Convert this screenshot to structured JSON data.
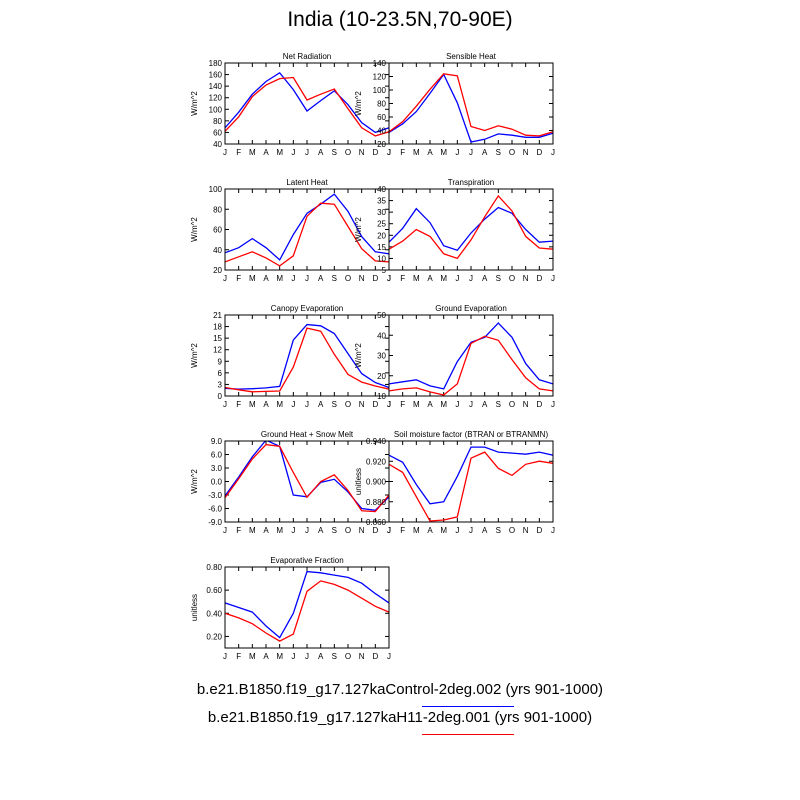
{
  "title": "India (10-23.5N,70-90E)",
  "colors": {
    "series1": "#0000ff",
    "series2": "#ff0000",
    "axis": "#000000"
  },
  "legend": [
    {
      "label": "b.e21.B1850.f19_g17.127kaControl-2deg.002 (yrs 901-1000)",
      "color": "#0000ff"
    },
    {
      "label": "b.e21.B1850.f19_g17.127kaH11-2deg.001 (yrs 901-1000)",
      "color": "#ff0000"
    }
  ],
  "chart_data": [
    {
      "type": "line",
      "title": "Net Radiation",
      "ylabel": "W/m^2",
      "categories": [
        "J",
        "F",
        "M",
        "A",
        "M",
        "J",
        "J",
        "A",
        "S",
        "O",
        "N",
        "D",
        "J"
      ],
      "ylim": [
        40,
        180
      ],
      "yticks": [
        40,
        60,
        80,
        100,
        120,
        140,
        160,
        180
      ],
      "ytick_labels": [
        "40",
        "60",
        "80",
        "100",
        "120",
        "140",
        "160",
        "180"
      ],
      "series": [
        {
          "values": [
            68,
            95,
            126,
            148,
            163,
            134,
            97,
            115,
            132,
            108,
            77,
            60,
            68
          ]
        },
        {
          "values": [
            62,
            87,
            122,
            142,
            153,
            155,
            116,
            126,
            135,
            101,
            68,
            54,
            61
          ]
        }
      ]
    },
    {
      "type": "line",
      "title": "Sensible Heat",
      "ylabel": "W/m^2",
      "categories": [
        "J",
        "F",
        "M",
        "A",
        "M",
        "J",
        "J",
        "A",
        "S",
        "O",
        "N",
        "D",
        "J"
      ],
      "ylim": [
        20,
        140
      ],
      "yticks": [
        20,
        40,
        60,
        80,
        100,
        120,
        140
      ],
      "ytick_labels": [
        "20",
        "40",
        "60",
        "80",
        "100",
        "120",
        "140"
      ],
      "series": [
        {
          "values": [
            37,
            50,
            68,
            95,
            123,
            81,
            23,
            27,
            35,
            33,
            30,
            30,
            36
          ]
        },
        {
          "values": [
            38,
            53,
            76,
            101,
            124,
            121,
            46,
            40,
            47,
            42,
            33,
            32,
            38
          ]
        }
      ]
    },
    {
      "type": "line",
      "title": "Latent Heat",
      "ylabel": "W/m^2",
      "categories": [
        "J",
        "F",
        "M",
        "A",
        "M",
        "J",
        "J",
        "A",
        "S",
        "O",
        "N",
        "D",
        "J"
      ],
      "ylim": [
        20,
        100
      ],
      "yticks": [
        20,
        40,
        60,
        80,
        100
      ],
      "ytick_labels": [
        "20",
        "40",
        "60",
        "80",
        "100"
      ],
      "series": [
        {
          "values": [
            37,
            42,
            51,
            42,
            30,
            55,
            76,
            85,
            95,
            78,
            53,
            38,
            36
          ]
        },
        {
          "values": [
            28,
            33,
            38,
            32,
            24,
            34,
            73,
            86,
            85,
            63,
            41,
            29,
            28
          ]
        }
      ]
    },
    {
      "type": "line",
      "title": "Transpiration",
      "ylabel": "W/m^2",
      "categories": [
        "J",
        "F",
        "M",
        "A",
        "M",
        "J",
        "J",
        "A",
        "S",
        "O",
        "N",
        "D",
        "J"
      ],
      "ylim": [
        5,
        40
      ],
      "yticks": [
        5,
        10,
        15,
        20,
        25,
        30,
        35,
        40
      ],
      "ytick_labels": [
        "5",
        "10",
        "15",
        "20",
        "25",
        "30",
        "35",
        "40"
      ],
      "series": [
        {
          "values": [
            17,
            23,
            31.5,
            25.5,
            15.5,
            13.5,
            21,
            27,
            32,
            29.5,
            22.5,
            17,
            17.5
          ]
        },
        {
          "values": [
            14,
            17.5,
            22.5,
            19.5,
            12,
            10,
            18,
            28,
            37,
            30.5,
            19.5,
            14.5,
            14
          ]
        }
      ]
    },
    {
      "type": "line",
      "title": "Canopy Evaporation",
      "ylabel": "W/m^2",
      "categories": [
        "J",
        "F",
        "M",
        "A",
        "M",
        "J",
        "J",
        "A",
        "S",
        "O",
        "N",
        "D",
        "J"
      ],
      "ylim": [
        0,
        21
      ],
      "yticks": [
        0,
        3,
        6,
        9,
        12,
        15,
        18,
        21
      ],
      "ytick_labels": [
        "0",
        "3",
        "6",
        "9",
        "12",
        "15",
        "18",
        "21"
      ],
      "series": [
        {
          "values": [
            2.0,
            1.8,
            1.9,
            2.1,
            2.5,
            14.5,
            18.5,
            18.2,
            16.2,
            11.0,
            5.8,
            3.5,
            2.2
          ]
        },
        {
          "values": [
            2.2,
            1.6,
            1.1,
            1.2,
            1.3,
            7.5,
            17.6,
            16.8,
            10.8,
            5.6,
            3.6,
            2.6,
            1.8
          ]
        }
      ]
    },
    {
      "type": "line",
      "title": "Ground Evaporation",
      "ylabel": "W/m^2",
      "categories": [
        "J",
        "F",
        "M",
        "A",
        "M",
        "J",
        "J",
        "A",
        "S",
        "O",
        "N",
        "D",
        "J"
      ],
      "ylim": [
        10,
        50
      ],
      "yticks": [
        10,
        20,
        30,
        40,
        50
      ],
      "ytick_labels": [
        "10",
        "20",
        "30",
        "40",
        "50"
      ],
      "series": [
        {
          "values": [
            16,
            17,
            18,
            15,
            13.5,
            27,
            36.5,
            39,
            46,
            39,
            26,
            18,
            16
          ]
        },
        {
          "values": [
            12.5,
            13.5,
            14,
            12,
            10.5,
            16,
            36,
            39.5,
            37.5,
            28,
            19,
            13.5,
            12.5
          ]
        }
      ]
    },
    {
      "type": "line",
      "title": "Ground Heat + Snow Melt",
      "ylabel": "W/m^2",
      "categories": [
        "J",
        "F",
        "M",
        "A",
        "M",
        "J",
        "J",
        "A",
        "S",
        "O",
        "N",
        "D",
        "J"
      ],
      "ylim": [
        -9,
        9
      ],
      "yticks": [
        -9,
        -6,
        -3,
        0,
        3,
        6,
        9
      ],
      "ytick_labels": [
        "-9.0",
        "-6.0",
        "-3.0",
        "0.0",
        "3.0",
        "6.0",
        "9.0"
      ],
      "series": [
        {
          "values": [
            -3.2,
            1.0,
            5.5,
            9.2,
            7.8,
            -3.0,
            -3.4,
            -0.2,
            0.5,
            -2.3,
            -6.0,
            -6.4,
            -3.4
          ]
        },
        {
          "values": [
            -3.6,
            0.6,
            5.0,
            8.2,
            7.8,
            2.0,
            -3.5,
            0.0,
            1.5,
            -2.0,
            -6.5,
            -6.7,
            -3.0
          ]
        }
      ]
    },
    {
      "type": "line",
      "title": "Soil moisture factor (BTRAN or BTRANMN)",
      "ylabel": "unitless",
      "categories": [
        "J",
        "F",
        "M",
        "A",
        "M",
        "J",
        "J",
        "A",
        "S",
        "O",
        "N",
        "D",
        "J"
      ],
      "ylim": [
        0.86,
        0.94
      ],
      "yticks": [
        0.86,
        0.88,
        0.9,
        0.92,
        0.94
      ],
      "ytick_labels": [
        "0.860",
        "0.880",
        "0.900",
        "0.920",
        "0.940"
      ],
      "series": [
        {
          "values": [
            0.926,
            0.919,
            0.897,
            0.878,
            0.88,
            0.905,
            0.934,
            0.934,
            0.929,
            0.928,
            0.927,
            0.929,
            0.926
          ]
        },
        {
          "values": [
            0.917,
            0.909,
            0.885,
            0.861,
            0.862,
            0.865,
            0.923,
            0.929,
            0.913,
            0.906,
            0.917,
            0.92,
            0.918
          ]
        }
      ]
    },
    {
      "type": "line",
      "title": "Evaporative Fraction",
      "ylabel": "unitless",
      "categories": [
        "J",
        "F",
        "M",
        "A",
        "M",
        "J",
        "J",
        "A",
        "S",
        "O",
        "N",
        "D",
        "J"
      ],
      "ylim": [
        0.1,
        0.8
      ],
      "yticks": [
        0.2,
        0.4,
        0.6,
        0.8
      ],
      "ytick_labels": [
        "0.20",
        "0.40",
        "0.60",
        "0.80"
      ],
      "series": [
        {
          "values": [
            0.49,
            0.45,
            0.41,
            0.29,
            0.19,
            0.4,
            0.76,
            0.75,
            0.73,
            0.71,
            0.66,
            0.57,
            0.49
          ]
        },
        {
          "values": [
            0.4,
            0.36,
            0.31,
            0.23,
            0.16,
            0.22,
            0.59,
            0.68,
            0.65,
            0.6,
            0.53,
            0.46,
            0.41
          ]
        }
      ]
    }
  ]
}
